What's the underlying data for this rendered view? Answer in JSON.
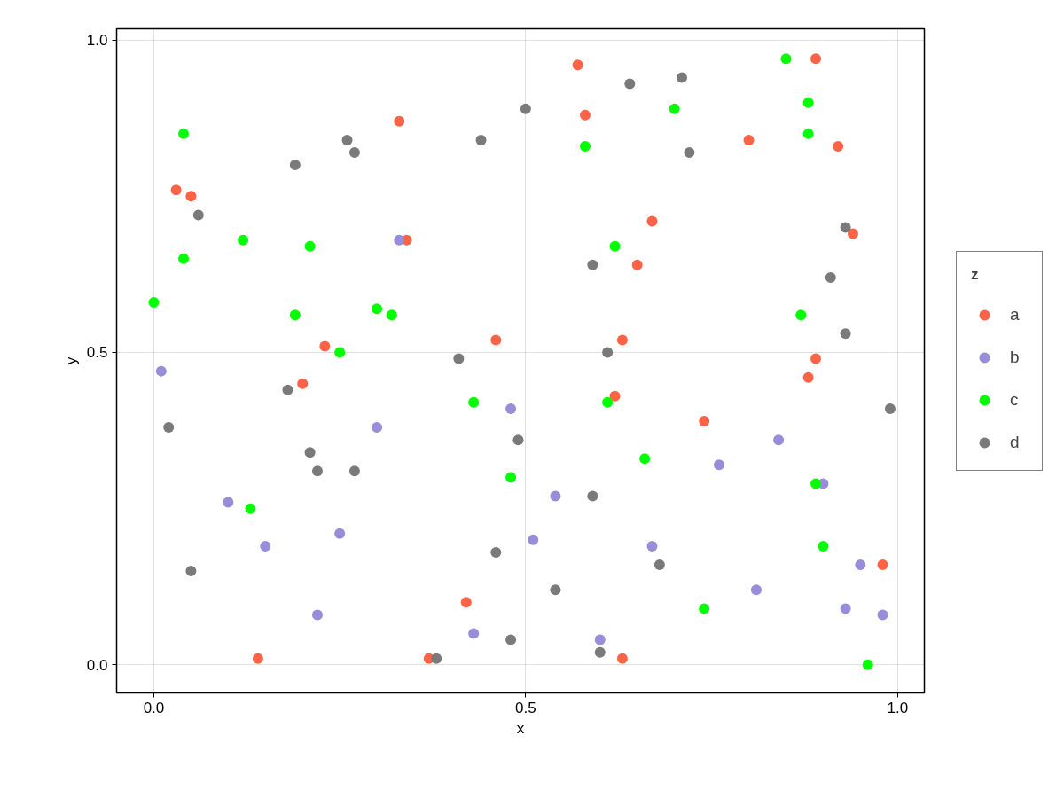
{
  "chart_data": {
    "type": "scatter",
    "xlabel": "x",
    "ylabel": "y",
    "legend_title": "z",
    "xlim": [
      -0.05,
      1.036
    ],
    "ylim": [
      -0.045,
      1.018
    ],
    "xticks": [
      {
        "value": 0,
        "label": "0.0"
      },
      {
        "value": 0.5,
        "label": "0.5"
      },
      {
        "value": 1,
        "label": "1.0"
      }
    ],
    "yticks": [
      {
        "value": 0,
        "label": "0.0"
      },
      {
        "value": 0.5,
        "label": "0.5"
      },
      {
        "value": 1,
        "label": "1.0"
      }
    ],
    "grid": true,
    "legend": "right",
    "marker": "circle",
    "series": [
      {
        "name": "a",
        "color": "#ff6347",
        "x": [
          0.03,
          0.05,
          0.33,
          0.34,
          0.23,
          0.46,
          0.57,
          0.89,
          0.58,
          0.8,
          0.92,
          0.67,
          0.94,
          0.65,
          0.63,
          0.89,
          0.2,
          0.42,
          0.14,
          0.37,
          0.88,
          0.62,
          0.74,
          0.98,
          0.63
        ],
        "values": [
          0.76,
          0.75,
          0.87,
          0.68,
          0.51,
          0.52,
          0.96,
          0.97,
          0.88,
          0.84,
          0.83,
          0.71,
          0.69,
          0.64,
          0.52,
          0.49,
          0.45,
          0.1,
          0.01,
          0.01,
          0.46,
          0.43,
          0.39,
          0.16,
          0.01
        ]
      },
      {
        "name": "b",
        "color": "#978dd9",
        "x": [
          0.33,
          0.01,
          0.48,
          0.3,
          0.1,
          0.25,
          0.15,
          0.22,
          0.43,
          0.84,
          0.76,
          0.9,
          0.54,
          0.51,
          0.67,
          0.95,
          0.81,
          0.93,
          0.98,
          0.6
        ],
        "values": [
          0.68,
          0.47,
          0.41,
          0.38,
          0.26,
          0.21,
          0.19,
          0.08,
          0.05,
          0.36,
          0.32,
          0.29,
          0.27,
          0.2,
          0.19,
          0.16,
          0.12,
          0.09,
          0.08,
          0.04
        ]
      },
      {
        "name": "c",
        "color": "#00ff00",
        "x": [
          0.04,
          0.12,
          0.21,
          0.04,
          0.0,
          0.19,
          0.3,
          0.32,
          0.25,
          0.85,
          0.7,
          0.88,
          0.58,
          0.88,
          0.62,
          0.87,
          0.43,
          0.48,
          0.13,
          0.61,
          0.66,
          0.89,
          0.9,
          0.74,
          0.96
        ],
        "values": [
          0.85,
          0.68,
          0.67,
          0.65,
          0.58,
          0.56,
          0.57,
          0.56,
          0.5,
          0.97,
          0.89,
          0.9,
          0.83,
          0.85,
          0.67,
          0.56,
          0.42,
          0.3,
          0.25,
          0.42,
          0.33,
          0.29,
          0.19,
          0.09,
          0.0
        ]
      },
      {
        "name": "d",
        "color": "#7a7a7a",
        "x": [
          0.26,
          0.27,
          0.19,
          0.44,
          0.5,
          0.06,
          0.41,
          0.64,
          0.71,
          0.72,
          0.93,
          0.59,
          0.91,
          0.93,
          0.61,
          0.18,
          0.02,
          0.49,
          0.21,
          0.22,
          0.27,
          0.46,
          0.05,
          0.48,
          0.38,
          0.99,
          0.59,
          0.68,
          0.54,
          0.6
        ],
        "values": [
          0.84,
          0.82,
          0.8,
          0.84,
          0.89,
          0.72,
          0.49,
          0.93,
          0.94,
          0.82,
          0.7,
          0.64,
          0.62,
          0.53,
          0.5,
          0.44,
          0.38,
          0.36,
          0.34,
          0.31,
          0.31,
          0.18,
          0.15,
          0.04,
          0.01,
          0.41,
          0.27,
          0.16,
          0.12,
          0.02
        ]
      }
    ]
  }
}
